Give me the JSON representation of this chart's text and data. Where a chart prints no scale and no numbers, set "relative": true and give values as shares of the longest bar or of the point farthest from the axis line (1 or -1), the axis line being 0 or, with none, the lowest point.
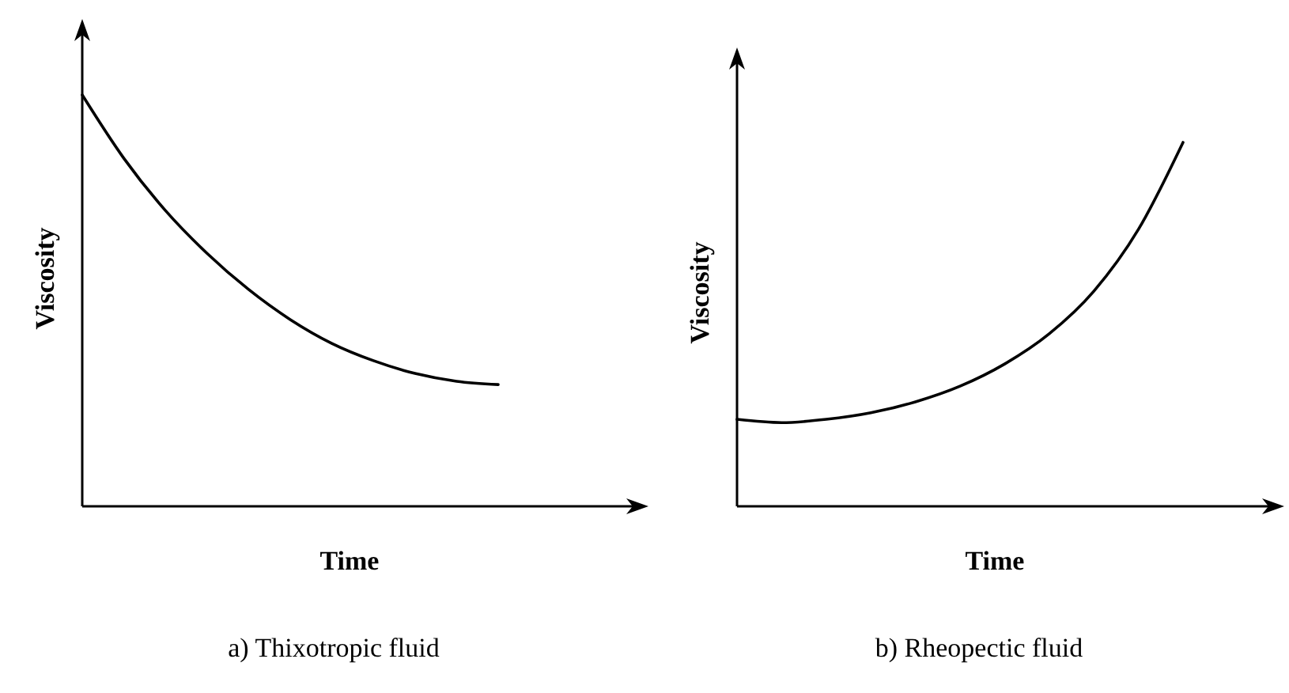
{
  "chart_data": [
    {
      "type": "line",
      "title": "a) Thixotropic fluid",
      "xlabel": "Time",
      "ylabel": "Viscosity",
      "relative": true,
      "categories": [
        null,
        null,
        null,
        null,
        null,
        null,
        null,
        null,
        null,
        null,
        null
      ],
      "series": [
        {
          "color": "#000000",
          "values": [
            1,
            0.846,
            0.719,
            0.615,
            0.527,
            0.454,
            0.396,
            0.354,
            0.323,
            0.304,
            0.296
          ]
        }
      ]
    },
    {
      "type": "line",
      "title": "b) Rheopectic fluid",
      "xlabel": "Time",
      "ylabel": "Viscosity",
      "relative": true,
      "categories": [
        null,
        null,
        null,
        null,
        null,
        null,
        null,
        null,
        null,
        null,
        null
      ],
      "series": [
        {
          "color": "#000000",
          "values": [
            0.239,
            0.23,
            0.239,
            0.257,
            0.287,
            0.33,
            0.391,
            0.474,
            0.591,
            0.761,
            1
          ]
        }
      ]
    }
  ]
}
